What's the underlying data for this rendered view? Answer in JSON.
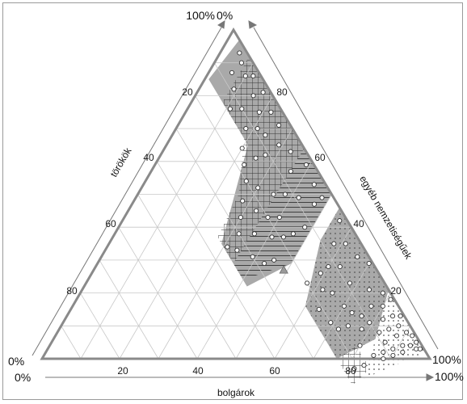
{
  "chart_data": {
    "type": "ternary",
    "title": "",
    "axes": {
      "bottom": {
        "label": "bolgárok",
        "start_label": "0%",
        "end_label": "100%",
        "ticks": [
          20,
          40,
          60,
          80
        ]
      },
      "left": {
        "label": "törökök",
        "start_label": "0%",
        "end_label": "100%",
        "ticks": [
          20,
          40,
          60,
          80
        ]
      },
      "right": {
        "label": "egyéb nemzetiségűek",
        "start_label": "0%",
        "end_label": "100%",
        "ticks": [
          20,
          40,
          60,
          80
        ]
      }
    },
    "grid": true,
    "grid_step": 10,
    "regions": [
      {
        "name": "",
        "pattern": "grey-fill",
        "color": "#a9a9a9",
        "vertices": [
          [
            0.08,
            0.14
          ],
          [
            0.21,
            0.14
          ],
          [
            0.29,
            0.36
          ],
          [
            0.42,
            0.36
          ],
          [
            0.5,
            0.21
          ],
          [
            0.5,
            0.0
          ],
          [
            0.03,
            0.0
          ],
          [
            0.01,
            0.14
          ]
        ]
      },
      {
        "name": "",
        "pattern": "grid",
        "color": "#333333",
        "vertices": [
          [
            0.08,
            0.0
          ],
          [
            0.08,
            0.14
          ],
          [
            0.19,
            0.14
          ],
          [
            0.26,
            0.24
          ],
          [
            0.27,
            0.36
          ],
          [
            0.35,
            0.36
          ],
          [
            0.36,
            0.0
          ]
        ]
      },
      {
        "name": "",
        "pattern": "horizontal-lines",
        "color": "#333333",
        "vertices": [
          [
            0.36,
            0.0
          ],
          [
            0.35,
            0.36
          ],
          [
            0.4,
            0.36
          ],
          [
            0.5,
            0.21
          ],
          [
            0.5,
            0.0
          ]
        ]
      },
      {
        "name": "",
        "pattern": "grey-fill-dots",
        "color": "#a9a9a9",
        "vertices": [
          [
            0.54,
            0.0
          ],
          [
            0.79,
            0.0
          ],
          [
            0.83,
            0.11
          ],
          [
            0.76,
            0.24
          ],
          [
            0.6,
            0.24
          ],
          [
            0.54,
            0.1
          ]
        ]
      },
      {
        "name": "",
        "pattern": "grid",
        "color": "#333333",
        "vertices": [
          [
            0.76,
            0.24
          ],
          [
            0.84,
            0.24
          ],
          [
            0.86,
            0.17
          ],
          [
            0.79,
            0.17
          ]
        ]
      },
      {
        "name": "",
        "pattern": "white-dots",
        "color": "#ffffff",
        "vertices": [
          [
            0.79,
            0.0
          ],
          [
            0.98,
            0.0
          ],
          [
            0.86,
            0.2
          ],
          [
            0.83,
            0.11
          ]
        ]
      }
    ],
    "marker_triangle": {
      "bolgárok": 0.49,
      "törökök": 0.24
    },
    "points": [
      [
        0.05,
        0.02
      ],
      [
        0.07,
        0.03
      ],
      [
        0.1,
        0.04
      ],
      [
        0.12,
        0.02
      ],
      [
        0.15,
        0.05
      ],
      [
        0.19,
        0.06
      ],
      [
        0.22,
        0.03
      ],
      [
        0.24,
        0.08
      ],
      [
        0.09,
        0.09
      ],
      [
        0.14,
        0.1
      ],
      [
        0.18,
        0.12
      ],
      [
        0.2,
        0.16
      ],
      [
        0.23,
        0.18
      ],
      [
        0.26,
        0.2
      ],
      [
        0.28,
        0.24
      ],
      [
        0.3,
        0.27
      ],
      [
        0.32,
        0.3
      ],
      [
        0.34,
        0.33
      ],
      [
        0.31,
        0.35
      ],
      [
        0.27,
        0.11
      ],
      [
        0.29,
        0.06
      ],
      [
        0.33,
        0.04
      ],
      [
        0.36,
        0.07
      ],
      [
        0.38,
        0.12
      ],
      [
        0.4,
        0.17
      ],
      [
        0.41,
        0.22
      ],
      [
        0.44,
        0.19
      ],
      [
        0.46,
        0.16
      ],
      [
        0.48,
        0.12
      ],
      [
        0.47,
        0.06
      ],
      [
        0.44,
        0.03
      ],
      [
        0.42,
        0.09
      ],
      [
        0.39,
        0.02
      ],
      [
        0.35,
        0.15
      ],
      [
        0.37,
        0.2
      ],
      [
        0.33,
        0.22
      ],
      [
        0.3,
        0.18
      ],
      [
        0.25,
        0.14
      ],
      [
        0.21,
        0.09
      ],
      [
        0.17,
        0.02
      ],
      [
        0.45,
        0.25
      ],
      [
        0.43,
        0.28
      ],
      [
        0.39,
        0.3
      ],
      [
        0.36,
        0.26
      ],
      [
        0.48,
        0.03
      ],
      [
        0.06,
        0.07
      ],
      [
        0.11,
        0.13
      ],
      [
        0.26,
        0.03
      ],
      [
        0.56,
        0.02
      ],
      [
        0.58,
        0.07
      ],
      [
        0.6,
        0.12
      ],
      [
        0.62,
        0.17
      ],
      [
        0.64,
        0.21
      ],
      [
        0.66,
        0.03
      ],
      [
        0.68,
        0.09
      ],
      [
        0.7,
        0.14
      ],
      [
        0.72,
        0.19
      ],
      [
        0.74,
        0.05
      ],
      [
        0.76,
        0.11
      ],
      [
        0.78,
        0.02
      ],
      [
        0.61,
        0.04
      ],
      [
        0.65,
        0.15
      ],
      [
        0.69,
        0.2
      ],
      [
        0.73,
        0.13
      ],
      [
        0.77,
        0.07
      ],
      [
        0.8,
        0.16
      ],
      [
        0.82,
        0.21
      ],
      [
        0.84,
        0.18
      ],
      [
        0.85,
        0.14
      ],
      [
        0.82,
        0.06
      ],
      [
        0.84,
        0.03
      ],
      [
        0.86,
        0.09
      ],
      [
        0.88,
        0.05
      ],
      [
        0.9,
        0.02
      ],
      [
        0.87,
        0.11
      ],
      [
        0.89,
        0.08
      ],
      [
        0.91,
        0.05
      ],
      [
        0.93,
        0.03
      ],
      [
        0.86,
        0.01
      ],
      [
        0.92,
        0.01
      ],
      [
        0.95,
        0.02
      ],
      [
        0.94,
        0.01
      ],
      [
        0.96,
        0.01
      ],
      [
        0.81,
        0.01
      ],
      [
        0.83,
        0.09
      ],
      [
        0.85,
        0.06
      ],
      [
        0.88,
        0.12
      ],
      [
        0.79,
        0.1
      ],
      [
        0.74,
        0.16
      ],
      [
        0.7,
        0.01
      ],
      [
        0.63,
        0.09
      ],
      [
        0.59,
        0.15
      ],
      [
        0.57,
        0.2
      ],
      [
        0.9,
        0.09
      ],
      [
        0.92,
        0.06
      ],
      [
        0.87,
        0.03
      ],
      [
        0.8,
        0.04
      ],
      [
        0.78,
        0.13
      ]
    ]
  }
}
